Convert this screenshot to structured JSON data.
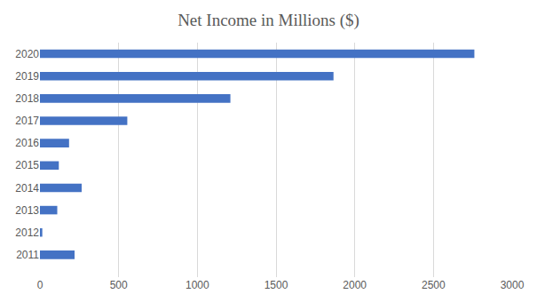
{
  "chart_data": {
    "type": "bar",
    "title": "Net Income in Millions ($)",
    "orientation": "horizontal",
    "categories": [
      "2011",
      "2012",
      "2013",
      "2014",
      "2015",
      "2016",
      "2017",
      "2018",
      "2019",
      "2020"
    ],
    "values": [
      220,
      15,
      110,
      265,
      120,
      185,
      555,
      1210,
      1865,
      2760
    ],
    "color": "#4472c4",
    "xlim": [
      0,
      3000
    ],
    "xticks": [
      0,
      500,
      1000,
      1500,
      2000,
      2500,
      3000
    ],
    "grid": true
  }
}
